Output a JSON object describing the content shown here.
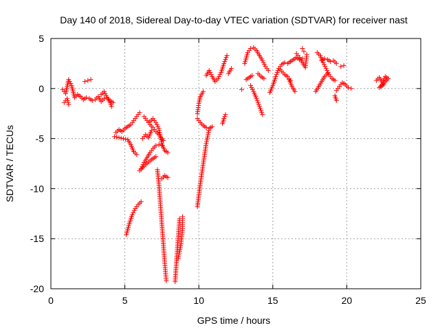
{
  "chart_data": {
    "type": "scatter",
    "title": "Day 140 of 2018, Sidereal Day-to-day VTEC variation (SDTVAR) for receiver nast",
    "xlabel": "GPS time / hours",
    "ylabel": "SDTVAR / TECUs",
    "xlim": [
      0,
      25
    ],
    "ylim": [
      -20,
      5
    ],
    "xticks": [
      0,
      5,
      10,
      15,
      20,
      25
    ],
    "yticks": [
      -20,
      -15,
      -10,
      -5,
      0,
      5
    ],
    "grid": true,
    "marker": "+",
    "color": "#ff0000",
    "series": [
      {
        "name": "SDTVAR",
        "segments": [
          [
            [
              0.8,
              -0.1
            ],
            [
              1.0,
              -0.5
            ],
            [
              1.2,
              0.9
            ],
            [
              1.4,
              0.3
            ],
            [
              1.6,
              -0.9
            ],
            [
              1.8,
              -0.6
            ],
            [
              2.0,
              -0.8
            ],
            [
              2.2,
              -1.1
            ],
            [
              2.4,
              -0.9
            ],
            [
              2.6,
              -1.0
            ],
            [
              2.8,
              -1.2
            ],
            [
              3.0,
              -1.1
            ],
            [
              3.2,
              -0.8
            ],
            [
              3.4,
              -1.3
            ],
            [
              3.6,
              -1.0
            ],
            [
              3.8,
              -0.9
            ],
            [
              4.0,
              -1.2
            ],
            [
              4.2,
              -1.4
            ]
          ],
          [
            [
              2.3,
              0.7
            ],
            [
              2.5,
              0.8
            ],
            [
              2.7,
              0.9
            ]
          ],
          [
            [
              3.4,
              -0.6
            ],
            [
              3.6,
              -0.3
            ],
            [
              3.8,
              -0.9
            ],
            [
              4.0,
              -1.4
            ],
            [
              4.1,
              -1.8
            ]
          ],
          [
            [
              0.9,
              -1.4
            ],
            [
              1.1,
              -1.0
            ],
            [
              1.2,
              -1.6
            ]
          ],
          [
            [
              4.4,
              -4.4
            ],
            [
              4.6,
              -4.1
            ],
            [
              4.8,
              -4.3
            ],
            [
              5.0,
              -4.0
            ],
            [
              5.2,
              -3.8
            ],
            [
              5.4,
              -3.6
            ],
            [
              5.6,
              -3.2
            ],
            [
              5.8,
              -2.8
            ],
            [
              6.0,
              -2.4
            ]
          ],
          [
            [
              4.3,
              -4.8
            ],
            [
              4.6,
              -4.9
            ],
            [
              4.9,
              -5.0
            ],
            [
              5.2,
              -5.1
            ],
            [
              5.4,
              -5.6
            ],
            [
              5.6,
              -6.3
            ],
            [
              5.8,
              -6.6
            ]
          ],
          [
            [
              6.2,
              -5.0
            ],
            [
              6.4,
              -4.6
            ],
            [
              6.6,
              -4.9
            ],
            [
              6.8,
              -4.2
            ]
          ],
          [
            [
              6.3,
              -2.8
            ],
            [
              6.5,
              -3.2
            ],
            [
              6.7,
              -3.6
            ],
            [
              6.9,
              -3.9
            ],
            [
              7.1,
              -4.3
            ],
            [
              7.3,
              -4.6
            ],
            [
              7.6,
              -5.2
            ]
          ],
          [
            [
              6.1,
              -8.0
            ],
            [
              6.3,
              -7.4
            ],
            [
              6.5,
              -6.9
            ],
            [
              6.7,
              -6.4
            ],
            [
              6.9,
              -6.0
            ],
            [
              7.1,
              -5.7
            ],
            [
              7.3,
              -5.6
            ],
            [
              7.5,
              -5.7
            ]
          ],
          [
            [
              6.0,
              -8.2
            ],
            [
              6.4,
              -7.6
            ],
            [
              6.8,
              -7.1
            ],
            [
              7.1,
              -6.8
            ]
          ],
          [
            [
              6.7,
              -3.3
            ],
            [
              6.9,
              -3.0
            ],
            [
              7.1,
              -3.4
            ],
            [
              7.3,
              -4.0
            ],
            [
              7.5,
              -5.5
            ],
            [
              7.7,
              -6.2
            ],
            [
              7.9,
              -6.4
            ]
          ],
          [
            [
              5.1,
              -14.6
            ],
            [
              5.3,
              -13.5
            ],
            [
              5.5,
              -12.6
            ],
            [
              5.7,
              -12.0
            ],
            [
              5.9,
              -11.6
            ],
            [
              6.1,
              -11.3
            ]
          ],
          [
            [
              7.2,
              -8.1
            ],
            [
              7.3,
              -9.5
            ],
            [
              7.4,
              -11.5
            ],
            [
              7.5,
              -13.5
            ],
            [
              7.6,
              -15.5
            ],
            [
              7.7,
              -17.5
            ],
            [
              7.8,
              -19.2
            ]
          ],
          [
            [
              7.5,
              -9.0
            ],
            [
              7.7,
              -8.7
            ],
            [
              7.9,
              -8.9
            ]
          ],
          [
            [
              8.4,
              -19.3
            ],
            [
              8.5,
              -17.0
            ],
            [
              8.6,
              -15.0
            ],
            [
              8.7,
              -13.0
            ]
          ],
          [
            [
              8.6,
              -17.0
            ],
            [
              8.8,
              -15.5
            ],
            [
              8.9,
              -14.0
            ],
            [
              8.9,
              -12.8
            ]
          ],
          [
            [
              9.9,
              -11.8
            ],
            [
              10.1,
              -9.5
            ],
            [
              10.3,
              -7.5
            ],
            [
              10.5,
              -5.5
            ],
            [
              10.7,
              -4.0
            ],
            [
              10.9,
              -3.8
            ]
          ],
          [
            [
              9.9,
              -3.0
            ],
            [
              10.1,
              -3.4
            ],
            [
              10.3,
              -3.7
            ],
            [
              10.5,
              -3.9
            ]
          ],
          [
            [
              9.9,
              -2.5
            ],
            [
              10.0,
              -1.5
            ],
            [
              10.1,
              -0.8
            ],
            [
              10.3,
              -0.3
            ]
          ],
          [
            [
              10.5,
              1.3
            ],
            [
              10.7,
              1.8
            ],
            [
              10.9,
              1.2
            ],
            [
              11.1,
              0.7
            ],
            [
              11.3,
              1.0
            ],
            [
              11.5,
              1.6
            ],
            [
              11.7,
              2.5
            ],
            [
              11.9,
              3.3
            ]
          ],
          [
            [
              11.6,
              -3.5
            ],
            [
              11.7,
              -3.0
            ],
            [
              11.8,
              -2.6
            ]
          ],
          [
            [
              12.0,
              1.5
            ],
            [
              12.2,
              2.0
            ]
          ],
          [
            [
              12.9,
              -0.1
            ]
          ],
          [
            [
              13.5,
              0.3
            ],
            [
              13.7,
              -0.3
            ],
            [
              13.9,
              -1.0
            ],
            [
              14.1,
              -1.8
            ],
            [
              14.3,
              -2.6
            ]
          ],
          [
            [
              13.1,
              2.5
            ],
            [
              13.3,
              3.6
            ],
            [
              13.5,
              4.0
            ],
            [
              13.7,
              4.1
            ],
            [
              13.9,
              3.8
            ],
            [
              14.1,
              3.3
            ],
            [
              14.3,
              2.8
            ],
            [
              14.5,
              2.2
            ],
            [
              14.7,
              1.8
            ]
          ],
          [
            [
              13.2,
              0.9
            ],
            [
              13.4,
              1.1
            ],
            [
              13.6,
              1.3
            ]
          ],
          [
            [
              14.0,
              1.5
            ],
            [
              14.2,
              1.2
            ],
            [
              14.4,
              1.0
            ]
          ],
          [
            [
              14.8,
              -0.4
            ],
            [
              15.0,
              0.3
            ],
            [
              15.2,
              1.2
            ],
            [
              15.4,
              2.0
            ],
            [
              15.6,
              2.4
            ],
            [
              15.8,
              2.6
            ],
            [
              16.0,
              2.5
            ],
            [
              16.2,
              2.7
            ],
            [
              16.4,
              2.9
            ],
            [
              16.6,
              3.1
            ],
            [
              16.8,
              2.9
            ],
            [
              17.0,
              3.0
            ]
          ],
          [
            [
              15.5,
              1.9
            ],
            [
              15.8,
              1.4
            ],
            [
              16.0,
              1.2
            ],
            [
              16.2,
              0.8
            ]
          ],
          [
            [
              16.1,
              0.9
            ],
            [
              16.3,
              0.2
            ],
            [
              16.5,
              -0.3
            ]
          ],
          [
            [
              16.6,
              3.5
            ],
            [
              16.8,
              3.1
            ],
            [
              17.0,
              2.6
            ],
            [
              17.2,
              2.1
            ],
            [
              17.3,
              3.4
            ]
          ],
          [
            [
              17.0,
              4.0
            ],
            [
              17.1,
              3.7
            ]
          ],
          [
            [
              17.9,
              -0.3
            ],
            [
              18.1,
              0.2
            ],
            [
              18.3,
              0.7
            ],
            [
              18.5,
              1.2
            ],
            [
              18.7,
              1.5
            ]
          ],
          [
            [
              18.3,
              2.8
            ],
            [
              18.5,
              3.0
            ],
            [
              18.7,
              2.9
            ],
            [
              18.9,
              2.7
            ],
            [
              19.1,
              2.8
            ],
            [
              19.3,
              2.5
            ]
          ],
          [
            [
              18.0,
              3.6
            ],
            [
              18.2,
              3.3
            ],
            [
              18.4,
              2.6
            ],
            [
              18.6,
              2.0
            ],
            [
              18.8,
              1.4
            ],
            [
              19.0,
              1.0
            ],
            [
              19.2,
              0.8
            ]
          ],
          [
            [
              19.3,
              -0.2
            ],
            [
              19.5,
              0.2
            ],
            [
              19.7,
              0.6
            ],
            [
              19.9,
              0.4
            ],
            [
              20.1,
              0.1
            ],
            [
              20.3,
              0.0
            ]
          ],
          [
            [
              19.2,
              -0.7
            ],
            [
              19.3,
              -1.2
            ]
          ],
          [
            [
              19.6,
              2.2
            ],
            [
              19.8,
              2.3
            ]
          ],
          [
            [
              22.0,
              0.8
            ],
            [
              22.2,
              1.1
            ],
            [
              22.4,
              0.6
            ],
            [
              22.6,
              1.2
            ],
            [
              22.8,
              1.0
            ],
            [
              22.2,
              0.1
            ],
            [
              22.5,
              0.4
            ]
          ]
        ]
      }
    ]
  }
}
